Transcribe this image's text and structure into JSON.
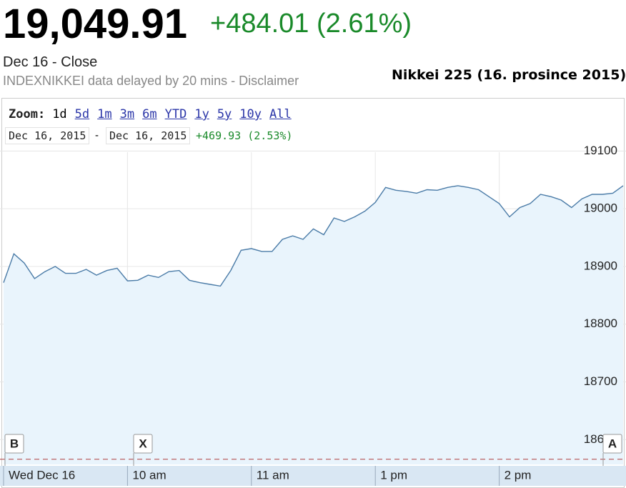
{
  "header": {
    "price": "19,049.91",
    "change": "+484.01 (2.61%)",
    "status": "Dec 16 - Close",
    "source": "INDEXNIKKEI data delayed by 20 mins - Disclaimer",
    "caption": "Nikkei 225 (16. prosince 2015)"
  },
  "controls": {
    "zoom_label": "Zoom:",
    "zoom_options": [
      "1d",
      "5d",
      "1m",
      "3m",
      "6m",
      "YTD",
      "1y",
      "5y",
      "10y",
      "All"
    ],
    "date_from": "Dec 16, 2015",
    "date_separator": "-",
    "date_to": "Dec 16, 2015",
    "range_change": "+469.93 (2.53%)"
  },
  "chart_data": {
    "type": "area",
    "x": [
      0,
      5,
      10,
      15,
      20,
      25,
      30,
      35,
      40,
      45,
      50,
      55,
      60,
      65,
      70,
      75,
      80,
      85,
      90,
      95,
      100,
      105,
      110,
      115,
      120,
      125,
      130,
      135,
      140,
      145,
      150,
      155,
      160,
      165,
      170,
      175,
      180,
      185,
      190,
      195,
      200,
      205,
      210,
      215,
      220,
      225,
      230,
      235,
      240,
      245,
      250,
      255,
      260,
      265,
      270,
      275,
      280,
      285,
      290,
      295,
      300
    ],
    "series": [
      {
        "name": "Nikkei 225",
        "color": "#4a7ba7",
        "values": [
          18872,
          18922,
          18906,
          18879,
          18891,
          18900,
          18888,
          18888,
          18895,
          18885,
          18893,
          18897,
          18875,
          18876,
          18885,
          18881,
          18891,
          18893,
          18876,
          18872,
          18869,
          18866,
          18893,
          18928,
          18931,
          18926,
          18926,
          18947,
          18953,
          18947,
          18965,
          18955,
          18984,
          18978,
          18986,
          18996,
          19011,
          19037,
          19032,
          19030,
          19027,
          19033,
          19032,
          19037,
          19040,
          19037,
          19033,
          19021,
          19009,
          18986,
          19002,
          19009,
          19025,
          19021,
          19015,
          19002,
          19017,
          19025,
          19025,
          19027,
          19040
        ]
      }
    ],
    "fill_color": "#e9f4fc",
    "previous_close": 18566,
    "xlim": [
      0,
      300
    ],
    "xticks": [
      {
        "value": 0,
        "label": "Wed Dec 16"
      },
      {
        "value": 60,
        "label": "10 am"
      },
      {
        "value": 120,
        "label": "11 am"
      },
      {
        "value": 180,
        "label": "1 pm"
      },
      {
        "value": 240,
        "label": "2 pm"
      }
    ],
    "ylim": [
      18557,
      19098
    ],
    "yticks": [
      18600,
      18700,
      18800,
      18900,
      19000,
      19100
    ],
    "grid": true,
    "markers": [
      "B",
      "X",
      "A"
    ]
  }
}
